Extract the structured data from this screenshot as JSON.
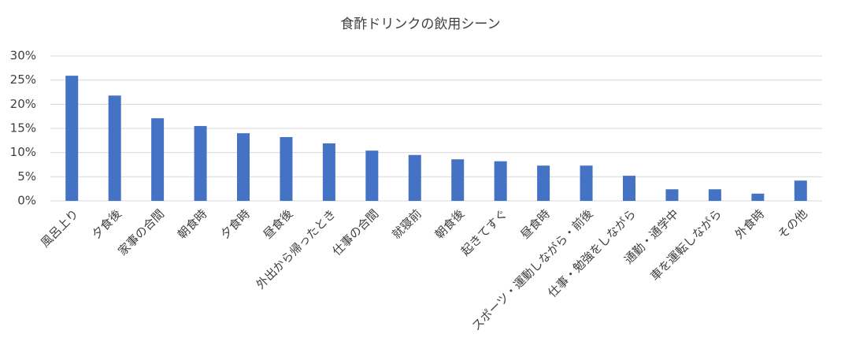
{
  "chart_data": {
    "type": "bar",
    "title": "食酢ドリンクの飲用シーン",
    "categories": [
      "風呂上り",
      "夕食後",
      "家事の合間",
      "朝食時",
      "夕食時",
      "昼食後",
      "外出から帰ったとき",
      "仕事の合間",
      "就寝前",
      "朝食後",
      "起きてすぐ",
      "昼食時",
      "スポーツ・運動しながら・前後",
      "仕事・勉強をしながら",
      "通勤・通学中",
      "車を運転しながら",
      "外食時",
      "その他"
    ],
    "values": [
      25.9,
      21.8,
      17.1,
      15.5,
      14.0,
      13.2,
      11.9,
      10.4,
      9.5,
      8.6,
      8.2,
      7.3,
      7.3,
      5.2,
      2.4,
      2.4,
      1.5,
      4.2
    ],
    "color": "#4472c4",
    "ylim": [
      0,
      30
    ],
    "yticks": [
      {
        "value": 0,
        "label": "0%"
      },
      {
        "value": 5,
        "label": "5%"
      },
      {
        "value": 10,
        "label": "10%"
      },
      {
        "value": 15,
        "label": "15%"
      },
      {
        "value": 20,
        "label": "20%"
      },
      {
        "value": 25,
        "label": "25%"
      },
      {
        "value": 30,
        "label": "30%"
      }
    ],
    "grid": true
  }
}
